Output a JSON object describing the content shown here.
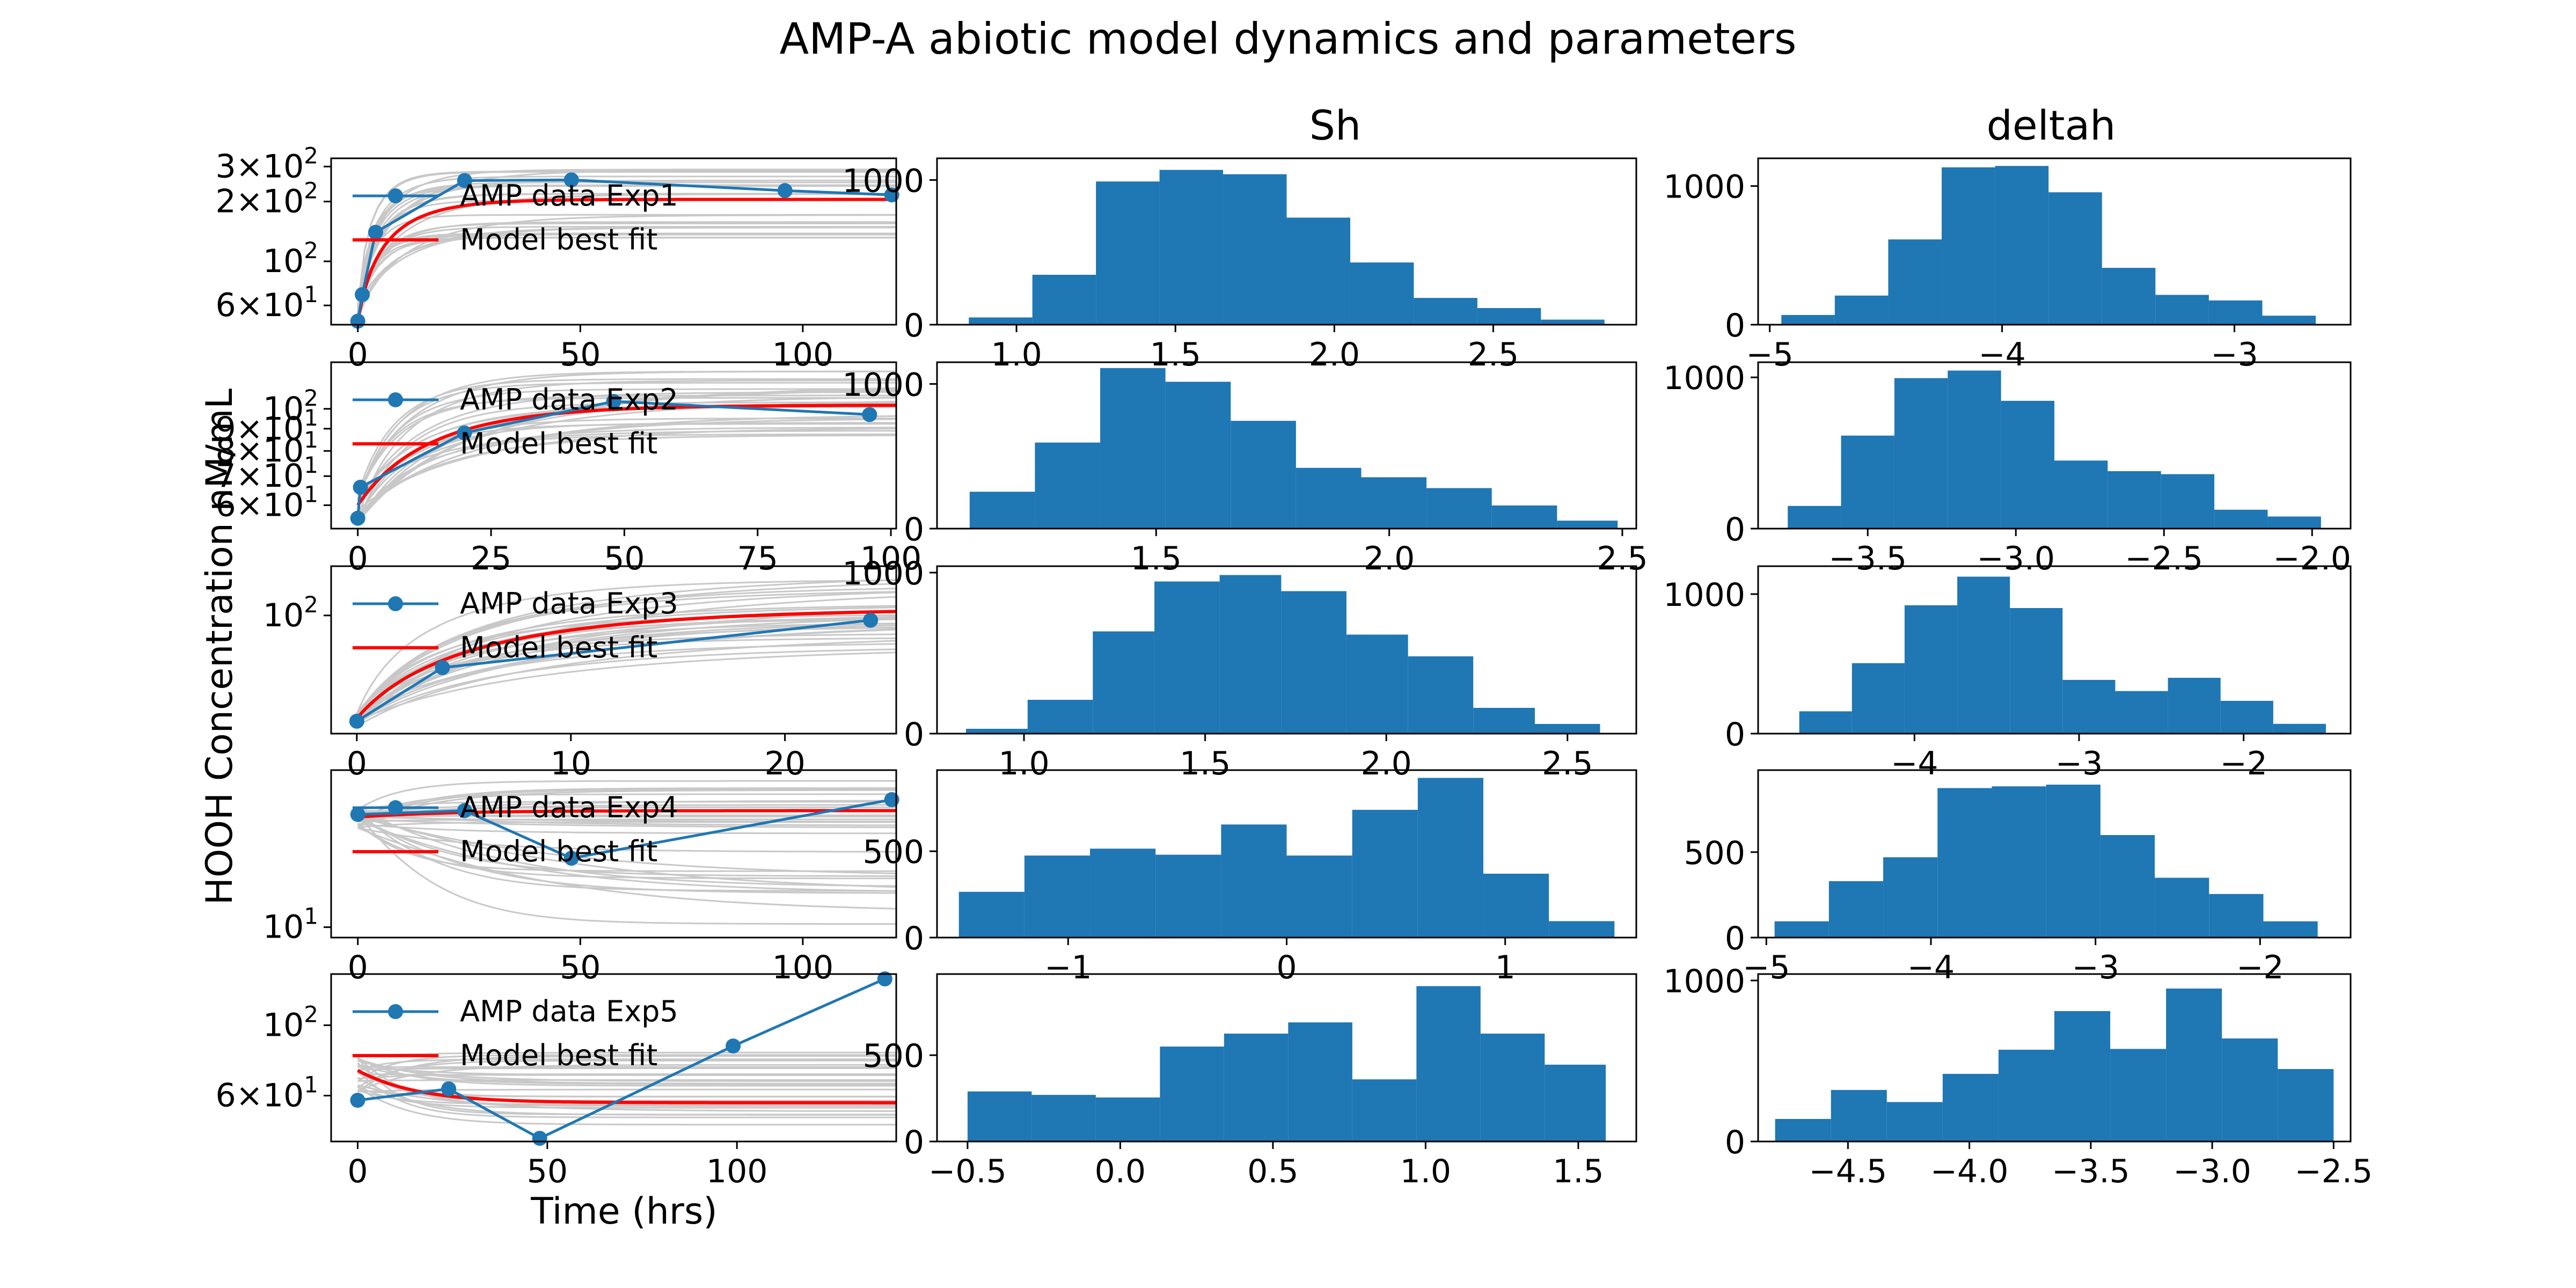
{
  "figure": {
    "title": "AMP-A abiotic model dynamics and parameters",
    "ylabel": "HOOH Concentration nM/mL",
    "xlabel": "Time (hrs)",
    "column_titles": [
      "",
      "Sh",
      "deltah"
    ]
  },
  "colors": {
    "data": "#1f77b4",
    "model": "#ff0000",
    "ensemble": "#c8c8c8",
    "hist": "#1f77b4"
  },
  "chart_data": [
    {
      "type": "line",
      "panel": "exp1",
      "yscale": "log",
      "xlim": [
        -6,
        121
      ],
      "ylim": [
        48,
        330
      ],
      "xticks": [
        0,
        50,
        100
      ],
      "xticklabels": [
        "0",
        "50",
        "100"
      ],
      "yticks": [
        60,
        100,
        200,
        300
      ],
      "yticklabels": [
        {
          "m": "6",
          "e": "1"
        },
        {
          "m": "",
          "e": "2"
        },
        {
          "m": "2",
          "e": "2"
        },
        {
          "m": "3",
          "e": "2"
        }
      ],
      "legend": {
        "data_label": "AMP data Exp1",
        "model_label": "Model best fit"
      },
      "series": [
        {
          "name": "AMP data Exp1",
          "x": [
            0,
            1,
            4,
            24,
            48,
            96,
            120
          ],
          "y": [
            50,
            68,
            140,
            255,
            257,
            227,
            216
          ]
        },
        {
          "name": "Model best fit",
          "y0": 50,
          "yinf": 205,
          "k": 0.1
        }
      ],
      "ensemble": {
        "count": 28,
        "y0_min": 50,
        "y0_max": 60,
        "yinf_min": 130,
        "yinf_max": 290,
        "k_min": 0.05,
        "k_max": 0.2
      }
    },
    {
      "type": "line",
      "panel": "exp2",
      "yscale": "log",
      "xlim": [
        -5,
        101
      ],
      "ylim": [
        53,
        128
      ],
      "xticks": [
        0,
        25,
        50,
        75,
        100
      ],
      "xticklabels": [
        "0",
        "25",
        "50",
        "75",
        "100"
      ],
      "yticks": [
        60,
        70,
        80,
        90,
        100
      ],
      "yticklabels": [
        {
          "m": "6",
          "e": "1"
        },
        {
          "m": "7",
          "e": "1"
        },
        {
          "m": "8",
          "e": "1"
        },
        {
          "m": "9",
          "e": "1"
        },
        {
          "m": "",
          "e": "2"
        }
      ],
      "legend": {
        "data_label": "AMP data Exp2",
        "model_label": "Model best fit"
      },
      "series": [
        {
          "name": "AMP data Exp2",
          "x": [
            0,
            0.5,
            20,
            48,
            96
          ],
          "y": [
            56,
            66,
            88,
            104,
            97
          ]
        },
        {
          "name": "Model best fit",
          "y0": 60,
          "yinf": 102,
          "k": 0.06
        }
      ],
      "ensemble": {
        "count": 28,
        "y0_min": 54,
        "y0_max": 64,
        "yinf_min": 86,
        "yinf_max": 122,
        "k_min": 0.03,
        "k_max": 0.12
      }
    },
    {
      "type": "line",
      "panel": "exp3",
      "yscale": "log",
      "xlim": [
        -1.2,
        25.2
      ],
      "ylim": [
        28,
        170
      ],
      "xticks": [
        0,
        10,
        20
      ],
      "xticklabels": [
        "0",
        "10",
        "20"
      ],
      "yticks": [
        100
      ],
      "yticklabels": [
        {
          "m": "",
          "e": "2"
        }
      ],
      "legend": {
        "data_label": "AMP data Exp3",
        "model_label": "Model best fit"
      },
      "series": [
        {
          "name": "AMP data Exp3",
          "x": [
            0,
            4,
            24
          ],
          "y": [
            32,
            57,
            95
          ]
        },
        {
          "name": "Model best fit",
          "y0": 33,
          "yinf": 108,
          "k": 0.12
        }
      ],
      "ensemble": {
        "count": 28,
        "y0_min": 30,
        "y0_max": 35,
        "yinf_min": 70,
        "yinf_max": 165,
        "k_min": 0.07,
        "k_max": 0.18
      }
    },
    {
      "type": "line",
      "panel": "exp4",
      "yscale": "log",
      "xlim": [
        -6,
        121
      ],
      "ylim": [
        9.3,
        30
      ],
      "xticks": [
        0,
        50,
        100
      ],
      "xticklabels": [
        "0",
        "50",
        "100"
      ],
      "yticks": [
        10
      ],
      "yticklabels": [
        {
          "m": "",
          "e": "1"
        }
      ],
      "legend": {
        "data_label": "AMP data Exp4",
        "model_label": "Model best fit"
      },
      "series": [
        {
          "name": "AMP data Exp4",
          "x": [
            0,
            24,
            48,
            120
          ],
          "y": [
            22,
            22.6,
            16.2,
            24.4
          ]
        },
        {
          "name": "Model best fit",
          "y0": 21.6,
          "yinf": 22.6,
          "k": 0.05
        }
      ],
      "ensemble": {
        "count": 30,
        "y0_min": 20,
        "y0_max": 23,
        "yinf_min": 10,
        "yinf_max": 28,
        "k_min": 0.02,
        "k_max": 0.1
      }
    },
    {
      "type": "line",
      "panel": "exp5",
      "yscale": "log",
      "xlim": [
        -7,
        142
      ],
      "ylim": [
        43,
        145
      ],
      "xticks": [
        0,
        50,
        100
      ],
      "xticklabels": [
        "0",
        "50",
        "100"
      ],
      "yticks": [
        60,
        100
      ],
      "yticklabels": [
        {
          "m": "6",
          "e": "1"
        },
        {
          "m": "",
          "e": "2"
        }
      ],
      "legend": {
        "data_label": "AMP data Exp5",
        "model_label": "Model best fit"
      },
      "series": [
        {
          "name": "AMP data Exp5",
          "x": [
            0,
            24,
            48,
            99,
            139
          ],
          "y": [
            58,
            63,
            44,
            86,
            140
          ]
        },
        {
          "name": "Model best fit",
          "y0": 72,
          "yinf": 57,
          "k": 0.07
        }
      ],
      "ensemble": {
        "count": 28,
        "y0_min": 60,
        "y0_max": 80,
        "yinf_min": 48,
        "yinf_max": 82,
        "k_min": 0.04,
        "k_max": 0.12
      }
    },
    {
      "type": "bar",
      "panel": "sh1",
      "title": "Sh",
      "xlim": [
        0.75,
        2.95
      ],
      "ylim": [
        0,
        1150
      ],
      "xticks": [
        1.0,
        1.5,
        2.0,
        2.5
      ],
      "xticklabels": [
        "1.0",
        "1.5",
        "2.0",
        "2.5"
      ],
      "yticks": [
        0,
        1000
      ],
      "yticklabels": [
        "0",
        "1000"
      ],
      "bin_edges": [
        0.85,
        1.05,
        1.25,
        1.45,
        1.65,
        1.85,
        2.05,
        2.25,
        2.45,
        2.65,
        2.85
      ],
      "values": [
        50,
        345,
        990,
        1070,
        1040,
        740,
        430,
        185,
        115,
        35
      ]
    },
    {
      "type": "bar",
      "panel": "sh2",
      "xlim": [
        1.03,
        2.53
      ],
      "ylim": [
        0,
        1150
      ],
      "xticks": [
        1.5,
        2.0,
        2.5
      ],
      "xticklabels": [
        "1.5",
        "2.0",
        "2.5"
      ],
      "yticks": [
        0,
        1000
      ],
      "yticklabels": [
        "0",
        "1000"
      ],
      "bin_edges": [
        1.1,
        1.24,
        1.38,
        1.52,
        1.66,
        1.8,
        1.94,
        2.08,
        2.22,
        2.36,
        2.49
      ],
      "values": [
        255,
        595,
        1110,
        1015,
        745,
        420,
        355,
        280,
        160,
        55
      ]
    },
    {
      "type": "bar",
      "panel": "sh3",
      "xlim": [
        0.76,
        2.69
      ],
      "ylim": [
        0,
        1040
      ],
      "xticks": [
        1.0,
        1.5,
        2.0,
        2.5
      ],
      "xticklabels": [
        "1.0",
        "1.5",
        "2.0",
        "2.5"
      ],
      "yticks": [
        0,
        1000
      ],
      "yticklabels": [
        "0",
        "1000"
      ],
      "bin_edges": [
        0.84,
        1.01,
        1.19,
        1.36,
        1.54,
        1.71,
        1.89,
        2.06,
        2.24,
        2.41,
        2.59
      ],
      "values": [
        30,
        210,
        635,
        945,
        985,
        885,
        615,
        480,
        160,
        60
      ]
    },
    {
      "type": "bar",
      "panel": "sh4",
      "xlim": [
        -1.6,
        1.6
      ],
      "ylim": [
        0,
        970
      ],
      "xticks": [
        -1,
        0,
        1
      ],
      "xticklabels": [
        "−1",
        "0",
        "1"
      ],
      "yticks": [
        0,
        500
      ],
      "yticklabels": [
        "0",
        "500"
      ],
      "bin_edges": [
        -1.5,
        -1.2,
        -0.9,
        -0.6,
        -0.3,
        0.0,
        0.3,
        0.6,
        0.9,
        1.2,
        1.5
      ],
      "values": [
        265,
        475,
        515,
        480,
        655,
        475,
        740,
        925,
        370,
        95
      ]
    },
    {
      "type": "bar",
      "panel": "sh5",
      "xlim": [
        -0.6,
        1.69
      ],
      "ylim": [
        0,
        970
      ],
      "xticks": [
        -0.5,
        0.0,
        0.5,
        1.0,
        1.5
      ],
      "xticklabels": [
        "−0.5",
        "0.0",
        "0.5",
        "1.0",
        "1.5"
      ],
      "yticks": [
        0,
        500
      ],
      "yticklabels": [
        "0",
        "500"
      ],
      "bin_edges": [
        -0.5,
        -0.29,
        -0.08,
        0.13,
        0.34,
        0.55,
        0.76,
        0.97,
        1.18,
        1.39,
        1.59
      ],
      "values": [
        290,
        270,
        255,
        550,
        625,
        690,
        360,
        900,
        625,
        445
      ]
    },
    {
      "type": "bar",
      "panel": "dh1",
      "title": "deltah",
      "xlim": [
        -5.05,
        -2.5
      ],
      "ylim": [
        0,
        1200
      ],
      "xticks": [
        -5,
        -4,
        -3
      ],
      "xticklabels": [
        "−5",
        "−4",
        "−3"
      ],
      "yticks": [
        0,
        1000
      ],
      "yticklabels": [
        "0",
        "1000"
      ],
      "bin_edges": [
        -4.95,
        -4.72,
        -4.49,
        -4.26,
        -4.03,
        -3.8,
        -3.57,
        -3.34,
        -3.11,
        -2.88,
        -2.65
      ],
      "values": [
        70,
        210,
        615,
        1135,
        1145,
        955,
        410,
        215,
        175,
        65
      ]
    },
    {
      "type": "bar",
      "panel": "dh2",
      "xlim": [
        -3.87,
        -1.87
      ],
      "ylim": [
        0,
        1100
      ],
      "xticks": [
        -3.5,
        -3.0,
        -2.5,
        -2.0
      ],
      "xticklabels": [
        "−3.5",
        "−3.0",
        "−2.5",
        "−2.0"
      ],
      "yticks": [
        0,
        1000
      ],
      "yticklabels": [
        "0",
        "1000"
      ],
      "bin_edges": [
        -3.77,
        -3.59,
        -3.41,
        -3.23,
        -3.05,
        -2.87,
        -2.69,
        -2.51,
        -2.33,
        -2.15,
        -1.97
      ],
      "values": [
        150,
        615,
        995,
        1045,
        845,
        450,
        380,
        360,
        125,
        80
      ]
    },
    {
      "type": "bar",
      "panel": "dh3",
      "xlim": [
        -4.95,
        -1.35
      ],
      "ylim": [
        0,
        1200
      ],
      "xticks": [
        -4,
        -3,
        -2
      ],
      "xticklabels": [
        "−4",
        "−3",
        "−2"
      ],
      "yticks": [
        0,
        1000
      ],
      "yticklabels": [
        "0",
        "1000"
      ],
      "bin_edges": [
        -4.7,
        -4.38,
        -4.06,
        -3.74,
        -3.42,
        -3.1,
        -2.78,
        -2.46,
        -2.14,
        -1.82,
        -1.5
      ],
      "values": [
        160,
        505,
        920,
        1125,
        900,
        385,
        305,
        400,
        235,
        70
      ]
    },
    {
      "type": "bar",
      "panel": "dh4",
      "xlim": [
        -5.05,
        -1.45
      ],
      "ylim": [
        0,
        980
      ],
      "xticks": [
        -5,
        -4,
        -3,
        -2
      ],
      "xticklabels": [
        "−5",
        "−4",
        "−3",
        "−2"
      ],
      "yticks": [
        0,
        500
      ],
      "yticklabels": [
        "0",
        "500"
      ],
      "bin_edges": [
        -4.95,
        -4.62,
        -4.29,
        -3.96,
        -3.63,
        -3.3,
        -2.97,
        -2.64,
        -2.31,
        -1.98,
        -1.65
      ],
      "values": [
        95,
        330,
        470,
        875,
        885,
        895,
        600,
        350,
        255,
        95
      ]
    },
    {
      "type": "bar",
      "panel": "dh5",
      "xlim": [
        -4.87,
        -2.43
      ],
      "ylim": [
        0,
        1040
      ],
      "xticks": [
        -4.5,
        -4.0,
        -3.5,
        -3.0,
        -2.5
      ],
      "xticklabels": [
        "−4.5",
        "−4.0",
        "−3.5",
        "−3.0",
        "−2.5"
      ],
      "yticks": [
        0,
        1000
      ],
      "yticklabels": [
        "0",
        "1000"
      ],
      "bin_edges": [
        -4.8,
        -4.57,
        -4.34,
        -4.11,
        -3.88,
        -3.65,
        -3.42,
        -3.19,
        -2.96,
        -2.73,
        -2.5
      ],
      "values": [
        140,
        320,
        245,
        420,
        570,
        810,
        575,
        950,
        640,
        450
      ]
    }
  ]
}
